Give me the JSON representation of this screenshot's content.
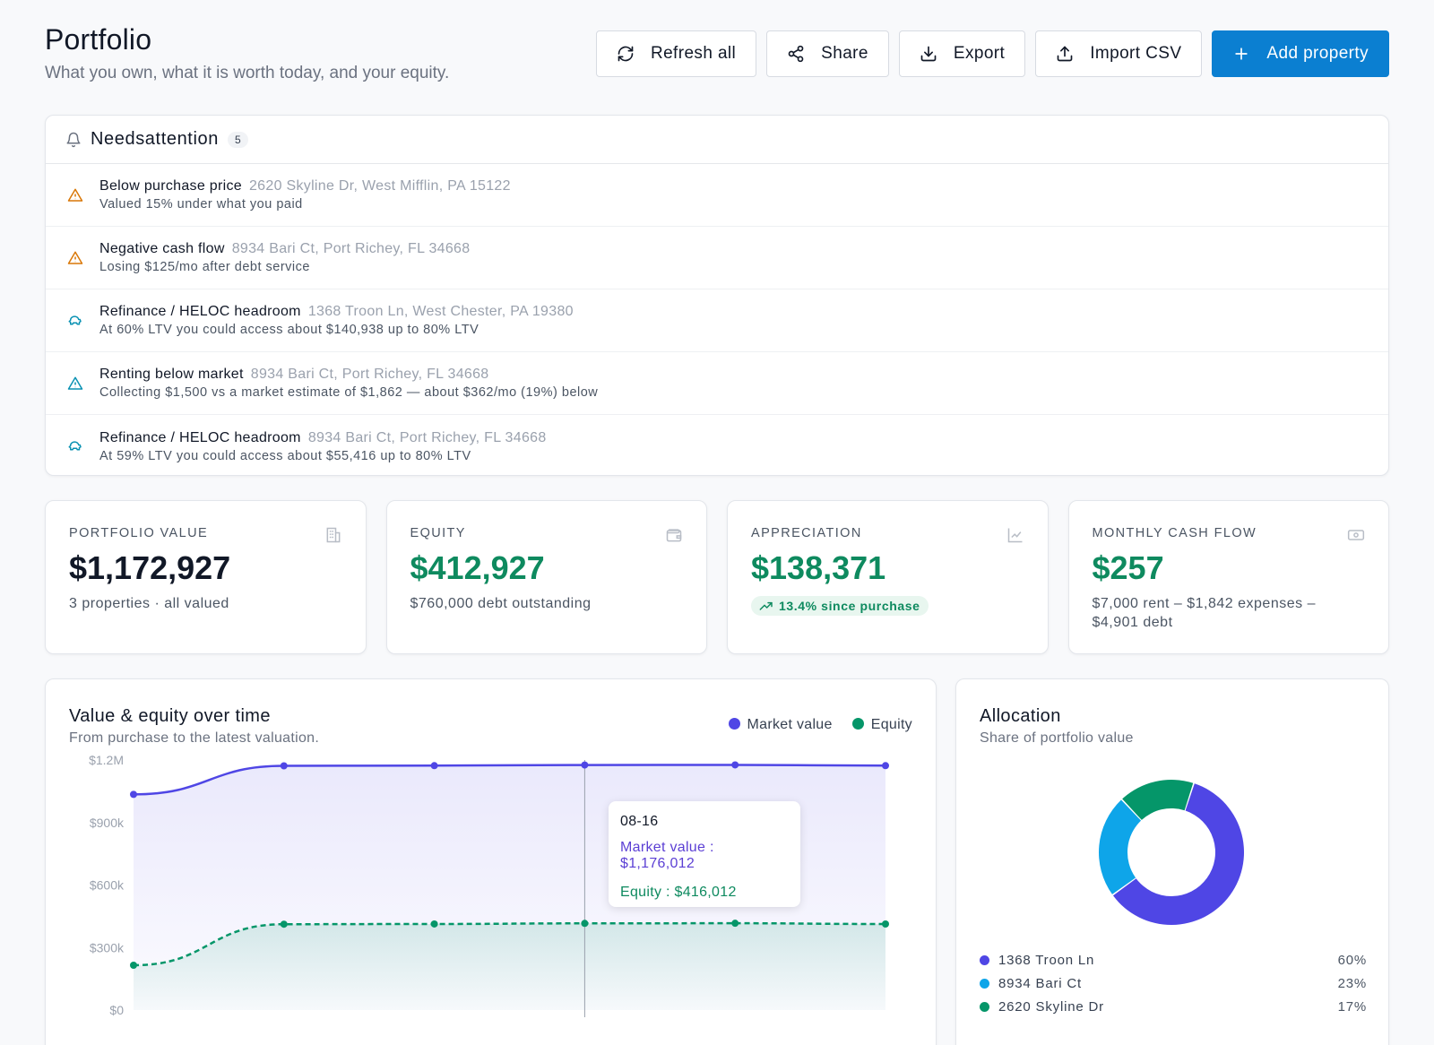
{
  "header": {
    "title": "Portfolio",
    "subtitle": "What you own, what it is worth today, and your equity."
  },
  "actions": {
    "refresh": "Refresh all",
    "share": "Share",
    "export": "Export",
    "import": "Import CSV",
    "add": "Add property"
  },
  "attention": {
    "title": "Needsattention",
    "count": "5",
    "items": [
      {
        "title": "Below purchase price",
        "address": "2620 Skyline Dr, West Mifflin, PA 15122",
        "detail": "Valued 15% under what you paid",
        "icon": "warning-icon"
      },
      {
        "title": "Negative cash flow",
        "address": "8934 Bari Ct, Port Richey, FL 34668",
        "detail": "Losing $125/mo after debt service",
        "icon": "warning-icon"
      },
      {
        "title": "Refinance / HELOC headroom",
        "address": "1368 Troon Ln, West Chester, PA 19380",
        "detail": "At 60% LTV you could access about $140,938 up to 80% LTV",
        "icon": "piggy-bank-icon"
      },
      {
        "title": "Renting below market",
        "address": "8934 Bari Ct, Port Richey, FL 34668",
        "detail": "Collecting $1,500 vs a market estimate of $1,862 — about $362/mo (19%) below",
        "icon": "info-triangle-icon"
      },
      {
        "title": "Refinance / HELOC headroom",
        "address": "8934 Bari Ct, Port Richey, FL 34668",
        "detail": "At 59% LTV you could access about $55,416 up to 80% LTV",
        "icon": "piggy-bank-icon"
      }
    ]
  },
  "kpis": {
    "portfolio_value": {
      "label": "PORTFOLIO VALUE",
      "value": "$1,172,927",
      "sub": "3 properties · all valued"
    },
    "equity": {
      "label": "EQUITY",
      "value": "$412,927",
      "sub": "$760,000 debt outstanding"
    },
    "appreciation": {
      "label": "APPRECIATION",
      "value": "$138,371",
      "pill": "13.4% since purchase"
    },
    "cash_flow": {
      "label": "MONTHLY CASH FLOW",
      "value": "$257",
      "sub": "$7,000 rent – $1,842 expenses – $4,901 debt"
    }
  },
  "value_chart": {
    "title": "Value & equity over time",
    "subtitle": "From purchase to the latest valuation.",
    "tooltip": {
      "date": "08-16",
      "market": "Market value : $1,176,012",
      "equity": "Equity : $416,012"
    }
  },
  "allocation": {
    "title": "Allocation",
    "subtitle": "Share of portfolio value",
    "items": [
      {
        "name": "1368 Troon Ln",
        "pct": "60%",
        "value": 60,
        "color": "#4f46e5"
      },
      {
        "name": "8934 Bari Ct",
        "pct": "23%",
        "value": 23,
        "color": "#0ea5e9"
      },
      {
        "name": "2620 Skyline Dr",
        "pct": "17%",
        "value": 17,
        "color": "#059669"
      }
    ]
  },
  "colors": {
    "primary": "#0b7fd1",
    "market": "#4f46e5",
    "equity": "#059669",
    "warning": "#d97706",
    "info": "#0891b2"
  },
  "chart_data": {
    "type": "line",
    "y_ticks": [
      "$1.2M",
      "$900k",
      "$600k",
      "$300k",
      "$0"
    ],
    "ylim": [
      0,
      1200000
    ],
    "series": [
      {
        "name": "Market value",
        "values": [
          1035000,
          1172000,
          1173000,
          1176012,
          1176500,
          1172927
        ]
      },
      {
        "name": "Equity",
        "values": [
          215000,
          412000,
          413000,
          416012,
          416500,
          412927
        ]
      }
    ],
    "grid": false,
    "legend": "top-right"
  }
}
